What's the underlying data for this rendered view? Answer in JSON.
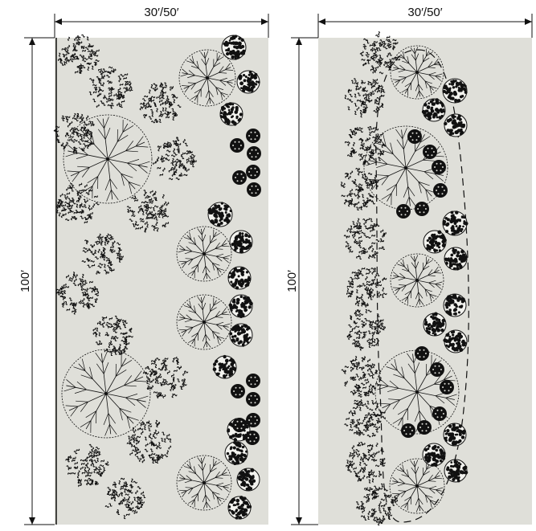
{
  "colors": {
    "ground": "#dfdfd9",
    "ink": "#111111"
  },
  "panels": [
    {
      "width_label": "30′/50′",
      "height_label": "100′"
    },
    {
      "width_label": "30′/50′",
      "height_label": "100′"
    }
  ],
  "icons": [
    "shade-tree-icon",
    "flowering-shrub-icon",
    "round-shrub-icon",
    "small-shrub-icon",
    "dimension-arrow-icon"
  ]
}
